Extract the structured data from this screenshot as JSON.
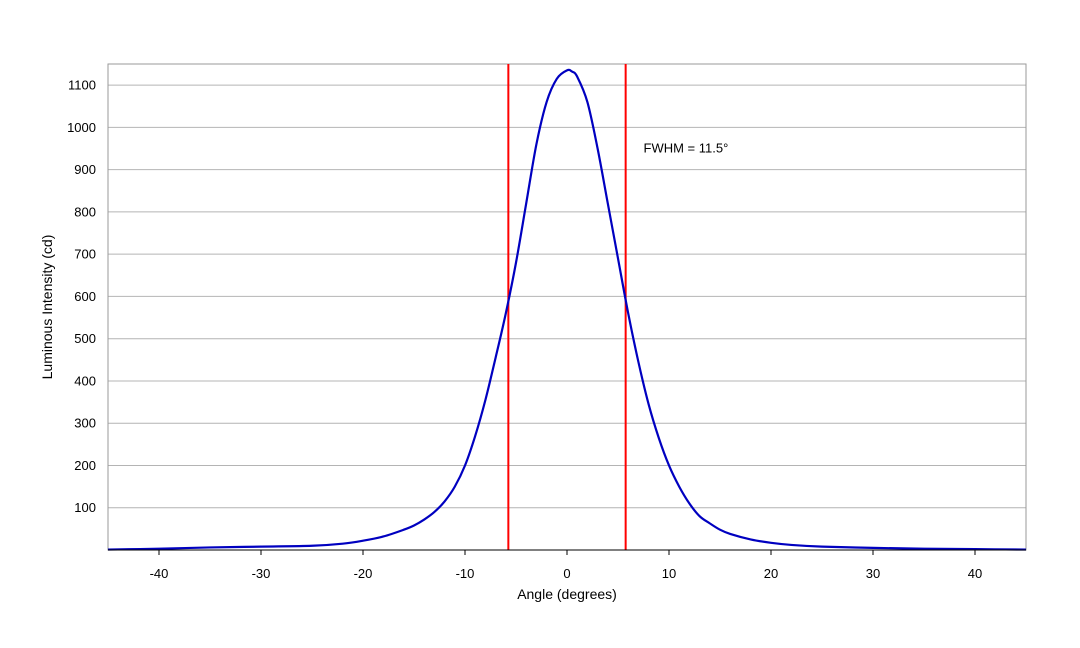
{
  "chart_data": {
    "type": "line",
    "title": "",
    "xlabel": "Angle (degrees)",
    "ylabel": "Luminous Intensity (cd)",
    "xlim": [
      -45,
      45
    ],
    "ylim": [
      0,
      1150
    ],
    "x_ticks": [
      -40,
      -30,
      -20,
      -10,
      0,
      10,
      20,
      30,
      40
    ],
    "x_tick_labels": [
      "-40",
      "-30",
      "-20",
      "-10",
      "0",
      "10",
      "20",
      "30",
      "40"
    ],
    "y_ticks": [
      100,
      200,
      300,
      400,
      500,
      600,
      700,
      800,
      900,
      1000,
      1100
    ],
    "y_tick_labels": [
      "100",
      "200",
      "300",
      "400",
      "500",
      "600",
      "700",
      "800",
      "900",
      "1000",
      "1100"
    ],
    "grid": {
      "horizontal": true,
      "vertical": false
    },
    "legend": "none",
    "series": [
      {
        "color": "#0000c0",
        "x": [
          -45,
          -40,
          -35,
          -30,
          -25,
          -22,
          -20,
          -18,
          -16,
          -15,
          -14,
          -13,
          -12,
          -11,
          -10,
          -9,
          -8,
          -7,
          -6,
          -5,
          -4,
          -3,
          -2,
          -1,
          0,
          0.5,
          1,
          2,
          3,
          4,
          5,
          6,
          7,
          8,
          9,
          10,
          11,
          12,
          13,
          14,
          15,
          16,
          18,
          20,
          22,
          25,
          30,
          35,
          40,
          45
        ],
        "y": [
          1,
          3,
          6,
          8,
          10,
          15,
          22,
          32,
          48,
          58,
          72,
          90,
          115,
          150,
          200,
          270,
          355,
          455,
          560,
          680,
          820,
          960,
          1060,
          1115,
          1135,
          1132,
          1120,
          1060,
          950,
          820,
          690,
          560,
          445,
          345,
          265,
          200,
          150,
          110,
          80,
          63,
          48,
          38,
          25,
          17,
          12,
          8,
          5,
          3,
          2,
          1
        ]
      }
    ],
    "markers": [
      {
        "type": "vertical-line",
        "x": -5.75,
        "color": "#ff0000"
      },
      {
        "type": "vertical-line",
        "x": 5.75,
        "color": "#ff0000"
      }
    ],
    "annotations": [
      {
        "text": "FWHM = 11.5°",
        "x": 7.5,
        "y": 940
      }
    ],
    "colors": {
      "curve": "#0000c0",
      "fwhm_lines": "#ff0000",
      "grid": "#b4b4b4",
      "frame": "#9a9a9a"
    }
  }
}
